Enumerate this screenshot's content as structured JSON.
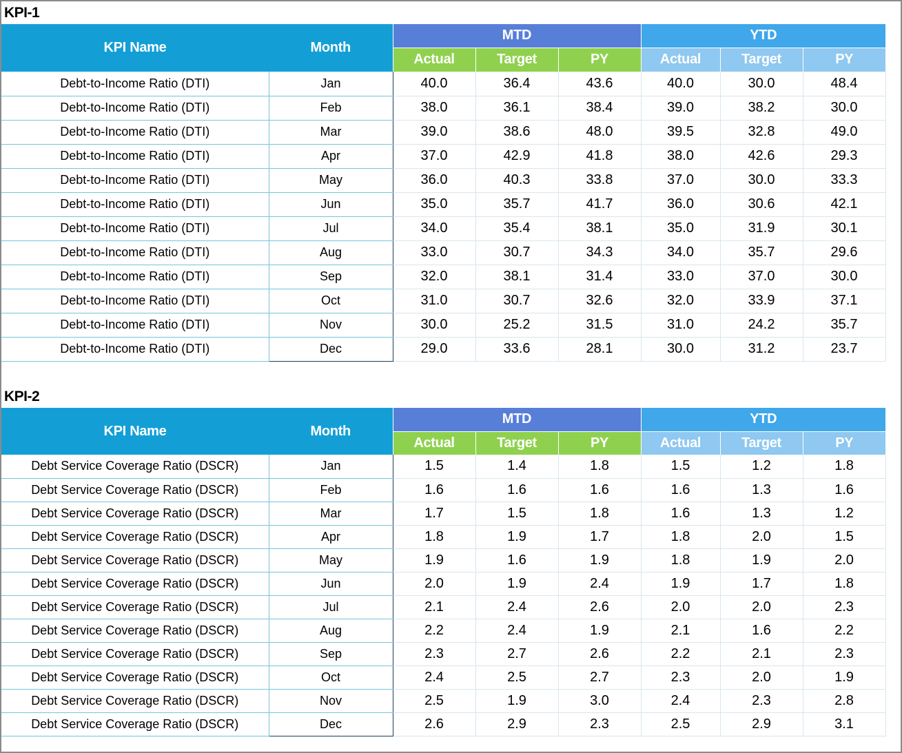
{
  "kpi1": {
    "title": "KPI-1",
    "headers": {
      "kpi_name": "KPI Name",
      "month": "Month",
      "mtd": "MTD",
      "ytd": "YTD",
      "sub": [
        "Actual",
        "Target",
        "PY",
        "Actual",
        "Target",
        "PY"
      ]
    },
    "rows": [
      {
        "name": "Debt-to-Income Ratio (DTI)",
        "month": "Jan",
        "values": [
          "40.0",
          "36.4",
          "43.6",
          "40.0",
          "30.0",
          "48.4"
        ]
      },
      {
        "name": "Debt-to-Income Ratio (DTI)",
        "month": "Feb",
        "values": [
          "38.0",
          "36.1",
          "38.4",
          "39.0",
          "38.2",
          "30.0"
        ]
      },
      {
        "name": "Debt-to-Income Ratio (DTI)",
        "month": "Mar",
        "values": [
          "39.0",
          "38.6",
          "48.0",
          "39.5",
          "32.8",
          "49.0"
        ]
      },
      {
        "name": "Debt-to-Income Ratio (DTI)",
        "month": "Apr",
        "values": [
          "37.0",
          "42.9",
          "41.8",
          "38.0",
          "42.6",
          "29.3"
        ]
      },
      {
        "name": "Debt-to-Income Ratio (DTI)",
        "month": "May",
        "values": [
          "36.0",
          "40.3",
          "33.8",
          "37.0",
          "30.0",
          "33.3"
        ]
      },
      {
        "name": "Debt-to-Income Ratio (DTI)",
        "month": "Jun",
        "values": [
          "35.0",
          "35.7",
          "41.7",
          "36.0",
          "30.6",
          "42.1"
        ]
      },
      {
        "name": "Debt-to-Income Ratio (DTI)",
        "month": "Jul",
        "values": [
          "34.0",
          "35.4",
          "38.1",
          "35.0",
          "31.9",
          "30.1"
        ]
      },
      {
        "name": "Debt-to-Income Ratio (DTI)",
        "month": "Aug",
        "values": [
          "33.0",
          "30.7",
          "34.3",
          "34.0",
          "35.7",
          "29.6"
        ]
      },
      {
        "name": "Debt-to-Income Ratio (DTI)",
        "month": "Sep",
        "values": [
          "32.0",
          "38.1",
          "31.4",
          "33.0",
          "37.0",
          "30.0"
        ]
      },
      {
        "name": "Debt-to-Income Ratio (DTI)",
        "month": "Oct",
        "values": [
          "31.0",
          "30.7",
          "32.6",
          "32.0",
          "33.9",
          "37.1"
        ]
      },
      {
        "name": "Debt-to-Income Ratio (DTI)",
        "month": "Nov",
        "values": [
          "30.0",
          "25.2",
          "31.5",
          "31.0",
          "24.2",
          "35.7"
        ]
      },
      {
        "name": "Debt-to-Income Ratio (DTI)",
        "month": "Dec",
        "values": [
          "29.0",
          "33.6",
          "28.1",
          "30.0",
          "31.2",
          "23.7"
        ]
      }
    ]
  },
  "kpi2": {
    "title": "KPI-2",
    "headers": {
      "kpi_name": "KPI Name",
      "month": "Month",
      "mtd": "MTD",
      "ytd": "YTD",
      "sub": [
        "Actual",
        "Target",
        "PY",
        "Actual",
        "Target",
        "PY"
      ]
    },
    "rows": [
      {
        "name": "Debt Service Coverage Ratio (DSCR)",
        "month": "Jan",
        "values": [
          "1.5",
          "1.4",
          "1.8",
          "1.5",
          "1.2",
          "1.8"
        ]
      },
      {
        "name": "Debt Service Coverage Ratio (DSCR)",
        "month": "Feb",
        "values": [
          "1.6",
          "1.6",
          "1.6",
          "1.6",
          "1.3",
          "1.6"
        ]
      },
      {
        "name": "Debt Service Coverage Ratio (DSCR)",
        "month": "Mar",
        "values": [
          "1.7",
          "1.5",
          "1.8",
          "1.6",
          "1.3",
          "1.2"
        ]
      },
      {
        "name": "Debt Service Coverage Ratio (DSCR)",
        "month": "Apr",
        "values": [
          "1.8",
          "1.9",
          "1.7",
          "1.8",
          "2.0",
          "1.5"
        ]
      },
      {
        "name": "Debt Service Coverage Ratio (DSCR)",
        "month": "May",
        "values": [
          "1.9",
          "1.6",
          "1.9",
          "1.8",
          "1.9",
          "2.0"
        ]
      },
      {
        "name": "Debt Service Coverage Ratio (DSCR)",
        "month": "Jun",
        "values": [
          "2.0",
          "1.9",
          "2.4",
          "1.9",
          "1.7",
          "1.8"
        ]
      },
      {
        "name": "Debt Service Coverage Ratio (DSCR)",
        "month": "Jul",
        "values": [
          "2.1",
          "2.4",
          "2.6",
          "2.0",
          "2.0",
          "2.3"
        ]
      },
      {
        "name": "Debt Service Coverage Ratio (DSCR)",
        "month": "Aug",
        "values": [
          "2.2",
          "2.4",
          "1.9",
          "2.1",
          "1.6",
          "2.2"
        ]
      },
      {
        "name": "Debt Service Coverage Ratio (DSCR)",
        "month": "Sep",
        "values": [
          "2.3",
          "2.7",
          "2.6",
          "2.2",
          "2.1",
          "2.3"
        ]
      },
      {
        "name": "Debt Service Coverage Ratio (DSCR)",
        "month": "Oct",
        "values": [
          "2.4",
          "2.5",
          "2.7",
          "2.3",
          "2.0",
          "1.9"
        ]
      },
      {
        "name": "Debt Service Coverage Ratio (DSCR)",
        "month": "Nov",
        "values": [
          "2.5",
          "1.9",
          "3.0",
          "2.4",
          "2.3",
          "2.8"
        ]
      },
      {
        "name": "Debt Service Coverage Ratio (DSCR)",
        "month": "Dec",
        "values": [
          "2.6",
          "2.9",
          "2.3",
          "2.5",
          "2.9",
          "3.1"
        ]
      }
    ]
  },
  "colors": {
    "header_blue": "#139fd6",
    "mtd_header": "#577fd7",
    "ytd_header": "#3fa7ea",
    "mtd_sub": "#8fd14f",
    "ytd_sub": "#8fc8f0"
  }
}
